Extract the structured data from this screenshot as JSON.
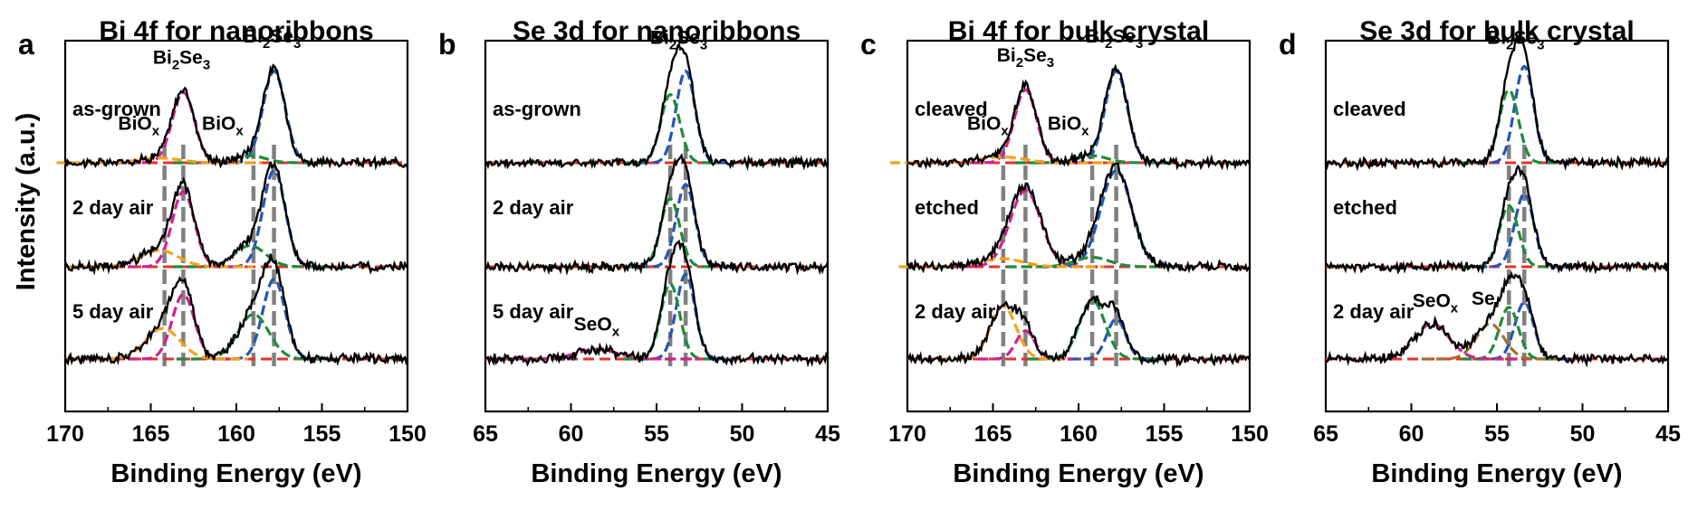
{
  "chart_data": {
    "ylabel": "Intensity (a.u.)",
    "colors": {
      "raw": "#000000",
      "bkg": "#e8302a",
      "peak1": "#2456b7",
      "peak2": "#1f8a3c",
      "oxide1": "#f5a11a",
      "oxide2": "#d0218e",
      "oxideSeMain": "#c8258f",
      "oxideSeSub": "#a07030",
      "guide": "#808080"
    },
    "panels": [
      {
        "letter": "a",
        "title": "Bi 4f for nanoribbons",
        "type": "line",
        "xlabel": "Binding Energy (eV)",
        "xlim": [
          170,
          150
        ],
        "xticks": [
          170,
          165,
          160,
          155,
          150
        ],
        "xticklabels": [
          "170",
          "165",
          "160",
          "155",
          "150"
        ],
        "traces": [
          {
            "name": "as-grown",
            "peaks": [
              {
                "center": 157.8,
                "height": 0.78,
                "width": 0.65,
                "color": "peak1"
              },
              {
                "center": 163.1,
                "height": 0.6,
                "width": 0.65,
                "color": "oxide2"
              },
              {
                "center": 159.2,
                "height": 0.06,
                "width": 0.9,
                "color": "peak2"
              },
              {
                "center": 164.5,
                "height": 0.04,
                "width": 1.2,
                "color": "oxide1"
              }
            ]
          },
          {
            "name": "2 day air",
            "peaks": [
              {
                "center": 157.8,
                "height": 0.82,
                "width": 0.65,
                "color": "peak1"
              },
              {
                "center": 163.1,
                "height": 0.64,
                "width": 0.65,
                "color": "oxide2"
              },
              {
                "center": 159.2,
                "height": 0.18,
                "width": 0.9,
                "color": "peak2"
              },
              {
                "center": 164.5,
                "height": 0.14,
                "width": 1.1,
                "color": "oxide1"
              }
            ]
          },
          {
            "name": "5 day air",
            "peaks": [
              {
                "center": 157.8,
                "height": 0.68,
                "width": 0.65,
                "color": "peak1"
              },
              {
                "center": 163.1,
                "height": 0.55,
                "width": 0.65,
                "color": "oxide2"
              },
              {
                "center": 159.0,
                "height": 0.38,
                "width": 0.9,
                "color": "peak2"
              },
              {
                "center": 164.3,
                "height": 0.26,
                "width": 1.0,
                "color": "oxide1"
              }
            ]
          }
        ],
        "guides": [
          164.2,
          163.1,
          159.0,
          157.8
        ],
        "annotations": [
          {
            "text": "Bi",
            "sub": "2",
            "rest": "Se",
            "sub2": "3",
            "x": 163.2,
            "trace": 0,
            "above": 0.78
          },
          {
            "text": "Bi",
            "sub": "2",
            "rest": "Se",
            "sub2": "3",
            "x": 157.9,
            "trace": 0,
            "above": 0.96
          },
          {
            "text": "BiO",
            "sub": "x",
            "rest": "",
            "sub2": "",
            "x": 165.7,
            "trace": 0,
            "above": 0.22
          },
          {
            "text": "BiO",
            "sub": "x",
            "rest": "",
            "sub2": "",
            "x": 160.8,
            "trace": 0,
            "above": 0.22
          }
        ]
      },
      {
        "letter": "b",
        "title": "Se 3d for nanoribbons",
        "type": "line",
        "xlabel": "Binding Energy (eV)",
        "xlim": [
          65,
          45
        ],
        "xticks": [
          65,
          60,
          55,
          50,
          45
        ],
        "xticklabels": [
          "65",
          "60",
          "55",
          "50",
          "45"
        ],
        "traces": [
          {
            "name": "as-grown",
            "peaks": [
              {
                "center": 53.3,
                "height": 0.78,
                "width": 0.55,
                "color": "peak1"
              },
              {
                "center": 54.2,
                "height": 0.58,
                "width": 0.55,
                "color": "peak2"
              }
            ]
          },
          {
            "name": "2 day air",
            "peaks": [
              {
                "center": 53.3,
                "height": 0.7,
                "width": 0.55,
                "color": "peak1"
              },
              {
                "center": 54.2,
                "height": 0.58,
                "width": 0.55,
                "color": "peak2"
              }
            ]
          },
          {
            "name": "5 day air",
            "peaks": [
              {
                "center": 53.3,
                "height": 0.72,
                "width": 0.55,
                "color": "peak1"
              },
              {
                "center": 54.2,
                "height": 0.64,
                "width": 0.55,
                "color": "peak2"
              },
              {
                "center": 58.5,
                "height": 0.08,
                "width": 1.2,
                "color": "oxide2"
              }
            ]
          }
        ],
        "guides": [
          54.2,
          53.3
        ],
        "annotations": [
          {
            "text": "Bi",
            "sub": "2",
            "rest": "Se",
            "sub2": "3",
            "x": 53.7,
            "trace": 0,
            "above": 0.95
          },
          {
            "text": "SeO",
            "sub": "x",
            "rest": "",
            "sub2": "",
            "x": 58.5,
            "trace": 2,
            "above": 0.18
          }
        ]
      },
      {
        "letter": "c",
        "title": "Bi 4f for bulk crystal",
        "type": "line",
        "xlabel": "Binding Energy (eV)",
        "xlim": [
          170,
          150
        ],
        "xticks": [
          170,
          165,
          160,
          155,
          150
        ],
        "xticklabels": [
          "170",
          "165",
          "160",
          "155",
          "150"
        ],
        "traces": [
          {
            "name": "cleaved",
            "peaks": [
              {
                "center": 157.8,
                "height": 0.78,
                "width": 0.65,
                "color": "peak1"
              },
              {
                "center": 163.1,
                "height": 0.62,
                "width": 0.65,
                "color": "oxide2"
              },
              {
                "center": 159.2,
                "height": 0.06,
                "width": 0.9,
                "color": "peak2"
              },
              {
                "center": 164.5,
                "height": 0.05,
                "width": 1.3,
                "color": "oxide1"
              }
            ]
          },
          {
            "name": "etched",
            "peaks": [
              {
                "center": 157.8,
                "height": 0.82,
                "width": 0.9,
                "color": "peak1"
              },
              {
                "center": 163.1,
                "height": 0.65,
                "width": 0.9,
                "color": "oxide2"
              },
              {
                "center": 159.2,
                "height": 0.08,
                "width": 1.0,
                "color": "peak2"
              },
              {
                "center": 164.5,
                "height": 0.07,
                "width": 1.2,
                "color": "oxide1"
              }
            ]
          },
          {
            "name": "2 day air",
            "peaks": [
              {
                "center": 157.8,
                "height": 0.34,
                "width": 0.55,
                "color": "peak1"
              },
              {
                "center": 163.1,
                "height": 0.24,
                "width": 0.55,
                "color": "oxide2"
              },
              {
                "center": 159.2,
                "height": 0.5,
                "width": 0.75,
                "color": "peak2"
              },
              {
                "center": 164.4,
                "height": 0.45,
                "width": 0.75,
                "color": "oxide1"
              }
            ]
          }
        ],
        "guides": [
          164.4,
          163.1,
          159.2,
          157.8
        ],
        "annotations": [
          {
            "text": "Bi",
            "sub": "2",
            "rest": "Se",
            "sub2": "3",
            "x": 163.1,
            "trace": 0,
            "above": 0.8
          },
          {
            "text": "Bi",
            "sub": "2",
            "rest": "Se",
            "sub2": "3",
            "x": 157.9,
            "trace": 0,
            "above": 0.96
          },
          {
            "text": "BiO",
            "sub": "x",
            "rest": "",
            "sub2": "",
            "x": 165.3,
            "trace": 0,
            "above": 0.22
          },
          {
            "text": "BiO",
            "sub": "x",
            "rest": "",
            "sub2": "",
            "x": 160.6,
            "trace": 0,
            "above": 0.22
          }
        ]
      },
      {
        "letter": "d",
        "title": "Se 3d for bulk crystal",
        "type": "line",
        "xlabel": "Binding Energy (eV)",
        "xlim": [
          65,
          45
        ],
        "xticks": [
          65,
          60,
          55,
          50,
          45
        ],
        "xticklabels": [
          "65",
          "60",
          "55",
          "50",
          "45"
        ],
        "traces": [
          {
            "name": "cleaved",
            "peaks": [
              {
                "center": 53.4,
                "height": 0.82,
                "width": 0.55,
                "color": "peak1"
              },
              {
                "center": 54.3,
                "height": 0.62,
                "width": 0.55,
                "color": "peak2"
              }
            ]
          },
          {
            "name": "etched",
            "peaks": [
              {
                "center": 53.4,
                "height": 0.62,
                "width": 0.55,
                "color": "peak1"
              },
              {
                "center": 54.3,
                "height": 0.52,
                "width": 0.55,
                "color": "peak2"
              }
            ]
          },
          {
            "name": "2 day air",
            "peaks": [
              {
                "center": 53.4,
                "height": 0.48,
                "width": 0.55,
                "color": "peak1"
              },
              {
                "center": 54.3,
                "height": 0.44,
                "width": 0.55,
                "color": "peak2"
              },
              {
                "center": 58.8,
                "height": 0.3,
                "width": 1.0,
                "color": "oxideSeMain"
              },
              {
                "center": 55.4,
                "height": 0.3,
                "width": 0.8,
                "color": "oxideSeSub"
              }
            ]
          }
        ],
        "guides": [
          54.3,
          53.4
        ],
        "annotations": [
          {
            "text": "Bi",
            "sub": "2",
            "rest": "Se",
            "sub2": "3",
            "x": 53.9,
            "trace": 0,
            "above": 0.95
          },
          {
            "text": "SeO",
            "sub": "x",
            "rest": "",
            "sub2": "",
            "x": 58.6,
            "trace": 2,
            "above": 0.38
          },
          {
            "text": "Se",
            "sub": "",
            "rest": "",
            "sub2": "",
            "x": 55.8,
            "trace": 2,
            "above": 0.4
          }
        ]
      }
    ]
  }
}
